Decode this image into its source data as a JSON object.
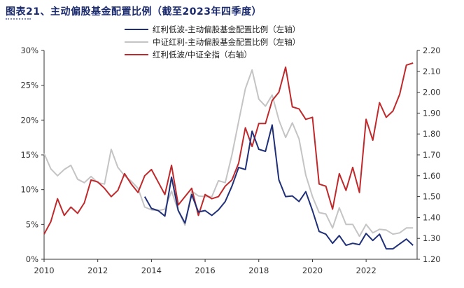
{
  "page": {
    "title": "图表21、主动偏股基金配置比例（截至2023年四季度）"
  },
  "chart_data": {
    "type": "line",
    "title": "",
    "left_axis": {
      "ticks": [
        "0%",
        "5%",
        "10%",
        "15%",
        "20%",
        "25%",
        "30%"
      ],
      "tick_values": [
        0,
        5,
        10,
        15,
        20,
        25,
        30
      ],
      "range": [
        0,
        30
      ]
    },
    "right_axis": {
      "ticks": [
        "1.20",
        "1.30",
        "1.40",
        "1.50",
        "1.60",
        "1.70",
        "1.80",
        "1.90",
        "2.00",
        "2.10",
        "2.20"
      ],
      "tick_values": [
        1.2,
        1.3,
        1.4,
        1.5,
        1.6,
        1.7,
        1.8,
        1.9,
        2.0,
        2.1,
        2.2
      ],
      "range": [
        1.2,
        2.2
      ]
    },
    "x_axis": {
      "ticks": [
        "2010",
        "2012",
        "2014",
        "2016",
        "2018",
        "2020",
        "2022"
      ],
      "tick_values": [
        2010,
        2012,
        2014,
        2016,
        2018,
        2020,
        2022
      ],
      "range": [
        2010,
        2023.9
      ]
    },
    "legend_position": "top-center",
    "series": [
      {
        "name": "红利低波-主动偏股基金配置比例（左轴）",
        "axis": "left",
        "color": "#1f3079",
        "x": [
          2013.75,
          2014.0,
          2014.25,
          2014.5,
          2014.75,
          2015.0,
          2015.25,
          2015.5,
          2015.75,
          2016.0,
          2016.25,
          2016.5,
          2016.75,
          2017.0,
          2017.25,
          2017.5,
          2017.75,
          2018.0,
          2018.25,
          2018.5,
          2018.75,
          2019.0,
          2019.25,
          2019.5,
          2019.75,
          2020.0,
          2020.25,
          2020.5,
          2020.75,
          2021.0,
          2021.25,
          2021.5,
          2021.75,
          2022.0,
          2022.25,
          2022.5,
          2022.75,
          2023.0,
          2023.25,
          2023.5,
          2023.75
        ],
        "values": [
          9.0,
          7.3,
          7.0,
          6.2,
          11.8,
          7.0,
          5.2,
          9.3,
          6.8,
          7.0,
          6.3,
          7.1,
          8.3,
          10.5,
          13.2,
          12.9,
          18.4,
          15.8,
          15.5,
          19.3,
          11.4,
          9.0,
          9.1,
          8.3,
          9.7,
          7.0,
          4.0,
          3.6,
          2.3,
          3.4,
          2.0,
          2.3,
          2.1,
          3.7,
          2.7,
          3.6,
          1.5,
          1.5,
          2.2,
          2.9,
          2.0
        ]
      },
      {
        "name": "中证红利-主动偏股基金配置比例（左轴）",
        "axis": "left",
        "color": "#c4c4c4",
        "x": [
          2010.0,
          2010.25,
          2010.5,
          2010.75,
          2011.0,
          2011.25,
          2011.5,
          2011.75,
          2012.0,
          2012.25,
          2012.5,
          2012.75,
          2013.0,
          2013.25,
          2013.5,
          2013.75,
          2014.0,
          2014.25,
          2014.5,
          2014.75,
          2015.0,
          2015.25,
          2015.5,
          2015.75,
          2016.0,
          2016.25,
          2016.5,
          2016.75,
          2017.0,
          2017.25,
          2017.5,
          2017.75,
          2018.0,
          2018.25,
          2018.5,
          2018.75,
          2019.0,
          2019.25,
          2019.5,
          2019.75,
          2020.0,
          2020.25,
          2020.5,
          2020.75,
          2021.0,
          2021.25,
          2021.5,
          2021.75,
          2022.0,
          2022.25,
          2022.5,
          2022.75,
          2023.0,
          2023.25,
          2023.5,
          2023.75
        ],
        "values": [
          15.2,
          13.0,
          12.0,
          12.9,
          13.5,
          11.5,
          11.0,
          11.9,
          11.0,
          10.8,
          15.8,
          13.2,
          12.0,
          11.2,
          10.2,
          7.5,
          7.1,
          7.0,
          7.2,
          9.8,
          7.0,
          4.9,
          9.8,
          9.1,
          9.0,
          9.0,
          11.3,
          11.0,
          15.0,
          19.8,
          24.5,
          27.2,
          23.0,
          22.0,
          23.6,
          20.0,
          17.5,
          19.6,
          17.3,
          12.1,
          9.0,
          6.7,
          6.5,
          4.5,
          7.4,
          5.0,
          5.0,
          3.3,
          5.0,
          3.8,
          4.3,
          4.2,
          3.6,
          3.8,
          4.5,
          4.5
        ]
      },
      {
        "name": "红利低波/中证全指（右轴）",
        "axis": "right",
        "color": "#c0292b",
        "x": [
          2010.0,
          2010.25,
          2010.5,
          2010.75,
          2011.0,
          2011.25,
          2011.5,
          2011.75,
          2012.0,
          2012.25,
          2012.5,
          2012.75,
          2013.0,
          2013.25,
          2013.5,
          2013.75,
          2014.0,
          2014.25,
          2014.5,
          2014.75,
          2015.0,
          2015.25,
          2015.5,
          2015.75,
          2016.0,
          2016.25,
          2016.5,
          2016.75,
          2017.0,
          2017.25,
          2017.5,
          2017.75,
          2018.0,
          2018.25,
          2018.5,
          2018.75,
          2019.0,
          2019.25,
          2019.5,
          2019.75,
          2020.0,
          2020.25,
          2020.5,
          2020.75,
          2021.0,
          2021.25,
          2021.5,
          2021.75,
          2022.0,
          2022.25,
          2022.5,
          2022.75,
          2023.0,
          2023.25,
          2023.5,
          2023.75
        ],
        "values": [
          1.32,
          1.38,
          1.49,
          1.41,
          1.45,
          1.42,
          1.47,
          1.58,
          1.57,
          1.54,
          1.5,
          1.53,
          1.61,
          1.56,
          1.52,
          1.6,
          1.63,
          1.57,
          1.51,
          1.65,
          1.46,
          1.5,
          1.54,
          1.41,
          1.51,
          1.49,
          1.5,
          1.55,
          1.58,
          1.66,
          1.83,
          1.74,
          1.85,
          1.85,
          1.96,
          2.0,
          2.12,
          1.93,
          1.92,
          1.87,
          1.88,
          1.56,
          1.55,
          1.44,
          1.61,
          1.53,
          1.64,
          1.52,
          1.87,
          1.77,
          1.95,
          1.88,
          1.91,
          1.99,
          2.13,
          2.14
        ]
      }
    ]
  }
}
